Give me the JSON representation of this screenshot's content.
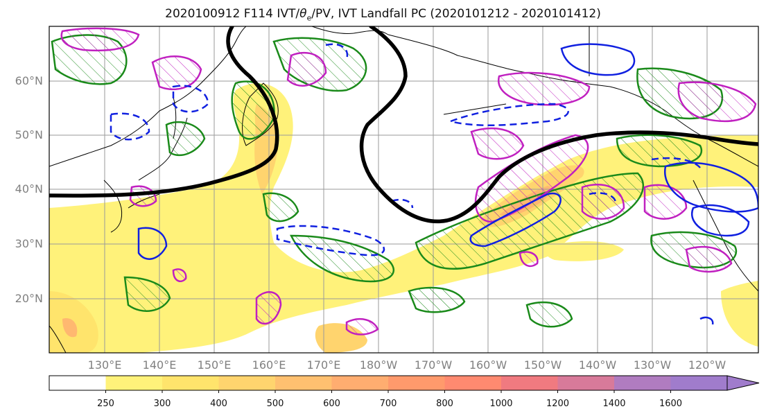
{
  "title": {
    "prefix": "2020100912 F114 IVT/",
    "theta": "θ",
    "theta_sub": "e",
    "suffix": "/PV, IVT Landfall PC (2020101212 - 2020101412)"
  },
  "map": {
    "lat_labels": [
      "60°N",
      "50°N",
      "40°N",
      "30°N",
      "20°N"
    ],
    "lon_labels": [
      "130°E",
      "140°E",
      "150°E",
      "160°E",
      "170°E",
      "180°W",
      "170°W",
      "160°W",
      "150°W",
      "140°W",
      "130°W",
      "120°W"
    ],
    "colors": {
      "jet_contour": "#000000",
      "green_contour": "#1a8a1a",
      "magenta_contour": "#c020c0",
      "blue_contour": "#1020e0"
    }
  },
  "colorbar": {
    "levels": [
      "250",
      "300",
      "400",
      "500",
      "600",
      "700",
      "800",
      "1000",
      "1200",
      "1400",
      "1600"
    ],
    "colors": [
      "#ffffff",
      "#fff27a",
      "#ffe46c",
      "#ffd46e",
      "#ffc070",
      "#ffad70",
      "#ff9a6c",
      "#ff8a70",
      "#f07a80",
      "#d87a9a",
      "#b07cc0",
      "#a07ccc"
    ]
  }
}
